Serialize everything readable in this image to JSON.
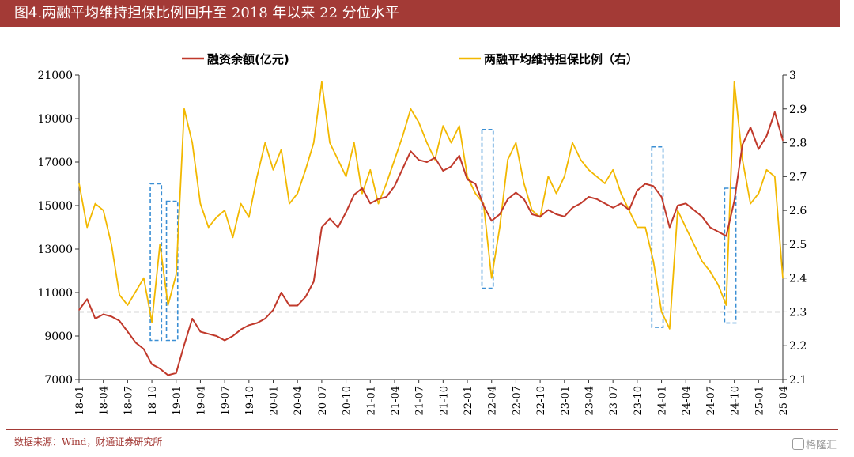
{
  "header": {
    "title": "图4.两融平均维持担保比例回升至 2018 年以来 22 分位水平"
  },
  "footer": {
    "source": "数据来源：Wind，财通证券研究所",
    "watermark": "格隆汇"
  },
  "colors": {
    "title_bg": "#a33a36",
    "margin_balance": "#c0392b",
    "guarantee_ratio": "#f2b800",
    "highlight_box": "#3b8fd4",
    "reference_line": "#b0b0b0"
  },
  "chart_data": {
    "type": "line",
    "title": "",
    "legend": {
      "placement": "top-center",
      "entries": [
        "融资余额(亿元)",
        "两融平均维持担保比例（右）"
      ]
    },
    "x_tick_labels": [
      "18-01",
      "18-04",
      "18-07",
      "18-10",
      "19-01",
      "19-04",
      "19-07",
      "19-10",
      "20-01",
      "20-04",
      "20-07",
      "20-10",
      "21-01",
      "21-04",
      "21-07",
      "21-10",
      "22-01",
      "22-04",
      "22-07",
      "22-10",
      "23-01",
      "23-04",
      "23-07",
      "23-10",
      "24-01",
      "24-04",
      "24-07",
      "24-10",
      "25-01",
      "25-04"
    ],
    "y_left": {
      "label": "",
      "min": 7000,
      "max": 21000,
      "ticks": [
        7000,
        9000,
        11000,
        13000,
        15000,
        17000,
        19000,
        21000
      ]
    },
    "y_right": {
      "label": "",
      "min": 2.1,
      "max": 3.0,
      "ticks": [
        2.1,
        2.2,
        2.3,
        2.4,
        2.5,
        2.6,
        2.7,
        2.8,
        2.9,
        3.0
      ]
    },
    "reference_line": {
      "axis": "right",
      "value": 2.3,
      "style": "dashed"
    },
    "series": [
      {
        "name": "融资余额(亿元)",
        "axis": "left",
        "x": [
          "18-01",
          "18-02",
          "18-03",
          "18-04",
          "18-05",
          "18-06",
          "18-07",
          "18-08",
          "18-09",
          "18-10",
          "18-11",
          "18-12",
          "19-01",
          "19-02",
          "19-03",
          "19-04",
          "19-05",
          "19-06",
          "19-07",
          "19-08",
          "19-09",
          "19-10",
          "19-11",
          "19-12",
          "20-01",
          "20-02",
          "20-03",
          "20-04",
          "20-05",
          "20-06",
          "20-07",
          "20-08",
          "20-09",
          "20-10",
          "20-11",
          "20-12",
          "21-01",
          "21-02",
          "21-03",
          "21-04",
          "21-05",
          "21-06",
          "21-07",
          "21-08",
          "21-09",
          "21-10",
          "21-11",
          "21-12",
          "22-01",
          "22-02",
          "22-03",
          "22-04",
          "22-05",
          "22-06",
          "22-07",
          "22-08",
          "22-09",
          "22-10",
          "22-11",
          "22-12",
          "23-01",
          "23-02",
          "23-03",
          "23-04",
          "23-05",
          "23-06",
          "23-07",
          "23-08",
          "23-09",
          "23-10",
          "23-11",
          "23-12",
          "24-01",
          "24-02",
          "24-03",
          "24-04",
          "24-05",
          "24-06",
          "24-07",
          "24-08",
          "24-09",
          "24-10",
          "24-11",
          "24-12",
          "25-01",
          "25-02",
          "25-03",
          "25-04"
        ],
        "values": [
          10200,
          10700,
          9800,
          10000,
          9900,
          9700,
          9200,
          8700,
          8400,
          7700,
          7500,
          7200,
          7300,
          8600,
          9800,
          9200,
          9100,
          9000,
          8800,
          9000,
          9300,
          9500,
          9600,
          9800,
          10200,
          11000,
          10400,
          10400,
          10800,
          11500,
          14000,
          14400,
          14000,
          14700,
          15500,
          15800,
          15100,
          15300,
          15400,
          15900,
          16700,
          17500,
          17100,
          17000,
          17200,
          16600,
          16800,
          17300,
          16200,
          16000,
          15000,
          14300,
          14600,
          15300,
          15600,
          15300,
          14600,
          14500,
          14800,
          14600,
          14500,
          14900,
          15100,
          15400,
          15300,
          15100,
          14900,
          15100,
          14800,
          15700,
          16000,
          15900,
          15400,
          14000,
          15000,
          15100,
          14800,
          14500,
          14000,
          13800,
          13600,
          15200,
          17800,
          18600,
          17600,
          18200,
          19300,
          18000
        ]
      },
      {
        "name": "两融平均维持担保比例（右）",
        "axis": "right",
        "x": [
          "18-01",
          "18-02",
          "18-03",
          "18-04",
          "18-05",
          "18-06",
          "18-07",
          "18-08",
          "18-09",
          "18-10",
          "18-11",
          "18-12",
          "19-01",
          "19-02",
          "19-03",
          "19-04",
          "19-05",
          "19-06",
          "19-07",
          "19-08",
          "19-09",
          "19-10",
          "19-11",
          "19-12",
          "20-01",
          "20-02",
          "20-03",
          "20-04",
          "20-05",
          "20-06",
          "20-07",
          "20-08",
          "20-09",
          "20-10",
          "20-11",
          "20-12",
          "21-01",
          "21-02",
          "21-03",
          "21-04",
          "21-05",
          "21-06",
          "21-07",
          "21-08",
          "21-09",
          "21-10",
          "21-11",
          "21-12",
          "22-01",
          "22-02",
          "22-03",
          "22-04",
          "22-05",
          "22-06",
          "22-07",
          "22-08",
          "22-09",
          "22-10",
          "22-11",
          "22-12",
          "23-01",
          "23-02",
          "23-03",
          "23-04",
          "23-05",
          "23-06",
          "23-07",
          "23-08",
          "23-09",
          "23-10",
          "23-11",
          "23-12",
          "24-01",
          "24-02",
          "24-03",
          "24-04",
          "24-05",
          "24-06",
          "24-07",
          "24-08",
          "24-09",
          "24-10",
          "24-11",
          "24-12",
          "25-01",
          "25-02",
          "25-03",
          "25-04"
        ],
        "values": [
          2.68,
          2.55,
          2.62,
          2.6,
          2.5,
          2.35,
          2.32,
          2.36,
          2.4,
          2.27,
          2.5,
          2.32,
          2.41,
          2.9,
          2.8,
          2.62,
          2.55,
          2.58,
          2.6,
          2.52,
          2.62,
          2.58,
          2.7,
          2.8,
          2.72,
          2.78,
          2.62,
          2.65,
          2.72,
          2.8,
          2.98,
          2.8,
          2.75,
          2.7,
          2.8,
          2.65,
          2.72,
          2.62,
          2.68,
          2.75,
          2.82,
          2.9,
          2.86,
          2.8,
          2.75,
          2.85,
          2.8,
          2.85,
          2.7,
          2.65,
          2.62,
          2.4,
          2.55,
          2.75,
          2.8,
          2.68,
          2.6,
          2.58,
          2.7,
          2.65,
          2.7,
          2.8,
          2.75,
          2.72,
          2.7,
          2.68,
          2.72,
          2.65,
          2.6,
          2.55,
          2.55,
          2.45,
          2.3,
          2.25,
          2.6,
          2.55,
          2.5,
          2.45,
          2.42,
          2.38,
          2.32,
          2.98,
          2.75,
          2.62,
          2.65,
          2.72,
          2.7,
          2.4
        ]
      }
    ],
    "highlight_boxes": [
      {
        "x_start": "18-10",
        "x_end": "18-11",
        "y_left_top": 16000,
        "y_left_bottom": 8800
      },
      {
        "x_start": "18-12",
        "x_end": "19-01",
        "y_left_top": 15200,
        "y_left_bottom": 8800
      },
      {
        "x_start": "22-03",
        "x_end": "22-04",
        "y_left_top": 18500,
        "y_left_bottom": 11200
      },
      {
        "x_start": "23-12",
        "x_end": "24-01",
        "y_left_top": 17700,
        "y_left_bottom": 9400
      },
      {
        "x_start": "24-09",
        "x_end": "24-10",
        "y_left_top": 15800,
        "y_left_bottom": 9600
      }
    ]
  }
}
